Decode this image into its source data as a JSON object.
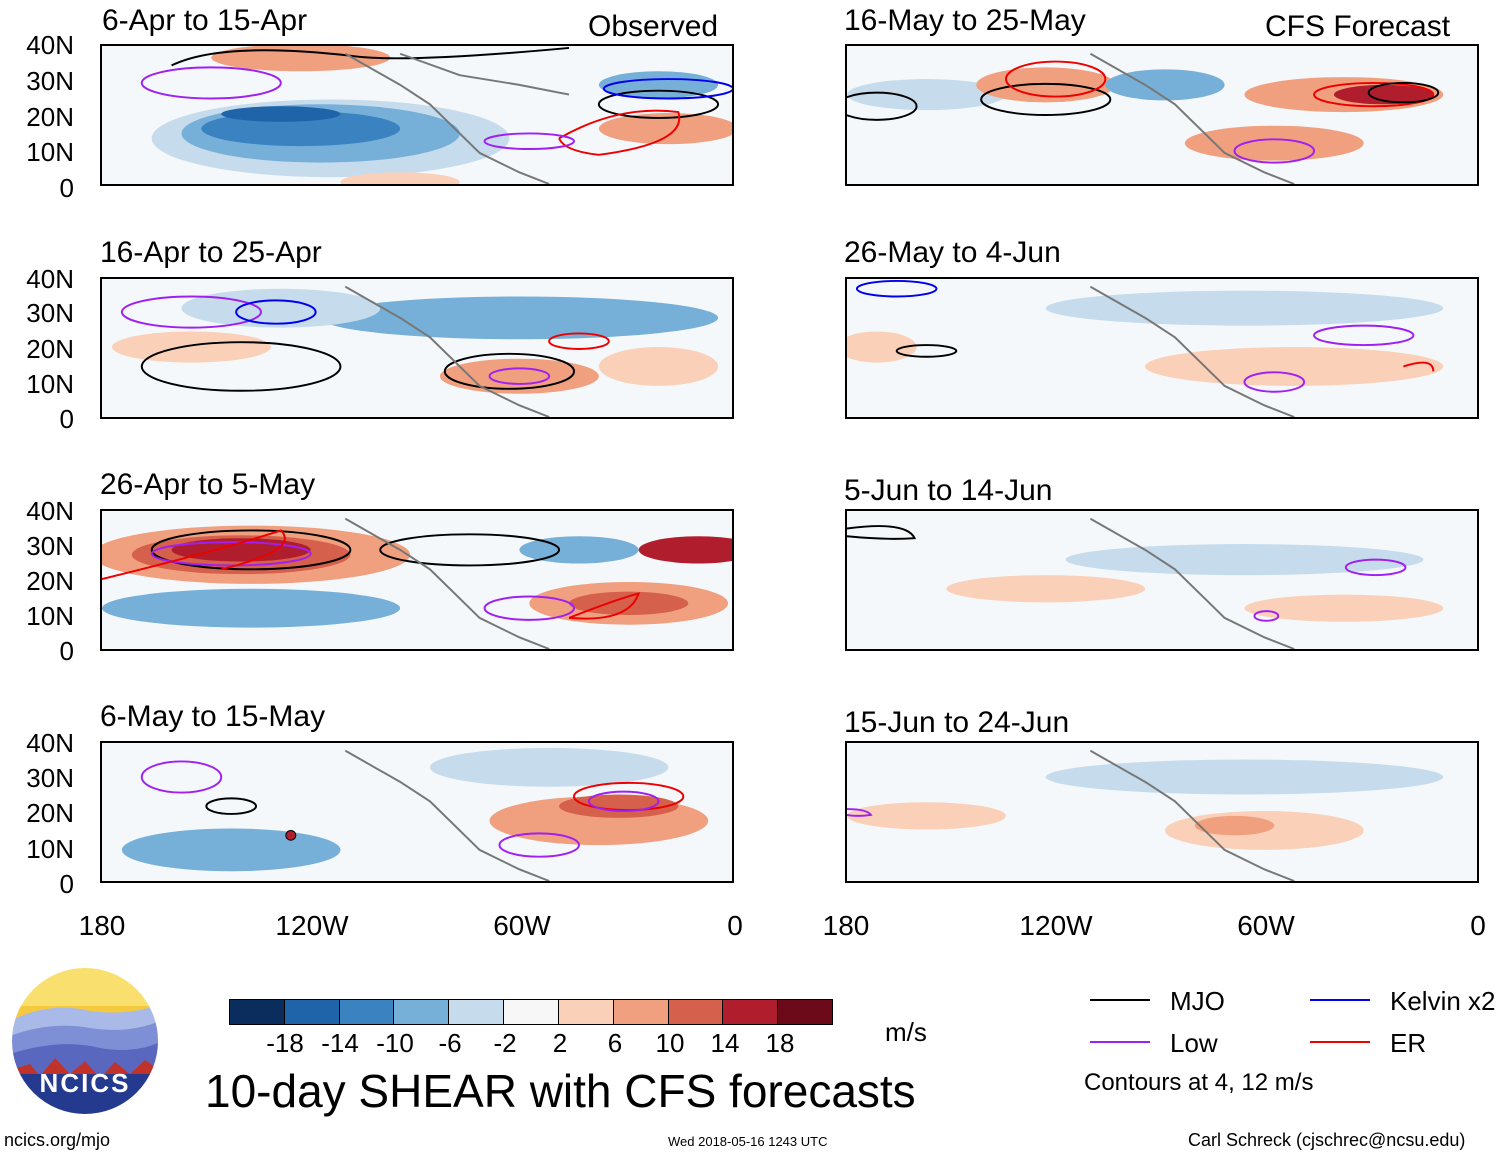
{
  "panels": {
    "left": [
      {
        "title": "6-Apr to 15-Apr",
        "tag": "Observed"
      },
      {
        "title": "16-Apr to 25-Apr"
      },
      {
        "title": "26-Apr to 5-May"
      },
      {
        "title": "6-May to 15-May"
      }
    ],
    "right": [
      {
        "title": "16-May to 25-May",
        "tag": "CFS Forecast"
      },
      {
        "title": "26-May to 4-Jun"
      },
      {
        "title": "5-Jun to 14-Jun"
      },
      {
        "title": "15-Jun to 24-Jun"
      }
    ]
  },
  "y_ticks": [
    "40N",
    "30N",
    "20N",
    "10N",
    "0"
  ],
  "x_ticks": [
    "180",
    "120W",
    "60W",
    "0"
  ],
  "colorbar": {
    "labels": [
      "-18",
      "-14",
      "-10",
      "-6",
      "-2",
      "2",
      "6",
      "10",
      "14",
      "18"
    ],
    "colors": [
      "#0b2d5e",
      "#1f63a8",
      "#3b82c0",
      "#76b0d8",
      "#c6dcec",
      "#f7f7f7",
      "#fbd0b9",
      "#f1a07f",
      "#d5604b",
      "#b01e2e",
      "#6d0a19"
    ],
    "units": "m/s"
  },
  "legend": {
    "items": [
      {
        "label": "MJO",
        "color": "#000000"
      },
      {
        "label": "Kelvin x2",
        "color": "#0000ee"
      },
      {
        "label": "Low",
        "color": "#a020f0"
      },
      {
        "label": "ER",
        "color": "#ee0000"
      }
    ],
    "note": "Contours at 4, 12 m/s"
  },
  "footer": {
    "main_title": "10-day SHEAR with CFS forecasts",
    "url": "ncics.org/mjo",
    "timestamp": "Wed 2018-05-16 1243 UTC",
    "credit": "Carl Schreck (cjschrec@ncsu.edu)",
    "logo_text": "NCICS"
  }
}
